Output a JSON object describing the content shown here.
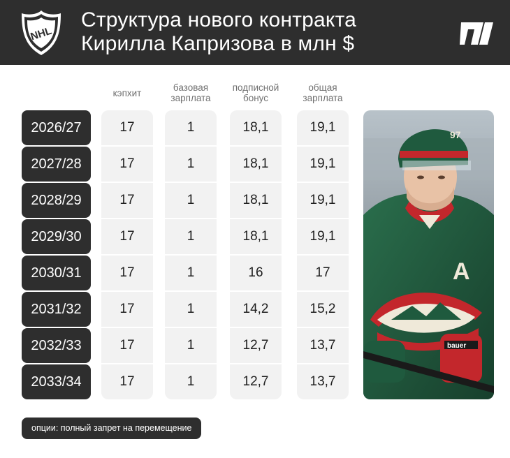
{
  "header": {
    "title_line1": "Структура нового контракта",
    "title_line2": "Кирилла Капризова в млн $",
    "league_logo_text": "NHL",
    "brand_icon": "sports-media-logo"
  },
  "colors": {
    "dark": "#2e2e2e",
    "cell_bg": "#f2f2f2",
    "text": "#1f1f1f",
    "muted": "#6f6f6f",
    "jersey_green": "#1f5a3e",
    "jersey_red": "#c3272c"
  },
  "chart_data": {
    "type": "table",
    "title": "Структура нового контракта Кирилла Капризова в млн $",
    "columns": [
      "кэпхит",
      "базовая зарплата",
      "подписной бонус",
      "общая зарплата"
    ],
    "rows": [
      {
        "season": "2026/27",
        "values": [
          "17",
          "1",
          "18,1",
          "19,1"
        ]
      },
      {
        "season": "2027/28",
        "values": [
          "17",
          "1",
          "18,1",
          "19,1"
        ]
      },
      {
        "season": "2028/29",
        "values": [
          "17",
          "1",
          "18,1",
          "19,1"
        ]
      },
      {
        "season": "2029/30",
        "values": [
          "17",
          "1",
          "18,1",
          "19,1"
        ]
      },
      {
        "season": "2030/31",
        "values": [
          "17",
          "1",
          "16",
          "17"
        ]
      },
      {
        "season": "2031/32",
        "values": [
          "17",
          "1",
          "14,2",
          "15,2"
        ]
      },
      {
        "season": "2032/33",
        "values": [
          "17",
          "1",
          "12,7",
          "13,7"
        ]
      },
      {
        "season": "2033/34",
        "values": [
          "17",
          "1",
          "12,7",
          "13,7"
        ]
      }
    ]
  },
  "photo": {
    "jersey_number": "97",
    "captain_letter": "A",
    "glove_text": "bauer"
  },
  "footnote": "опции: полный запрет на перемещение"
}
